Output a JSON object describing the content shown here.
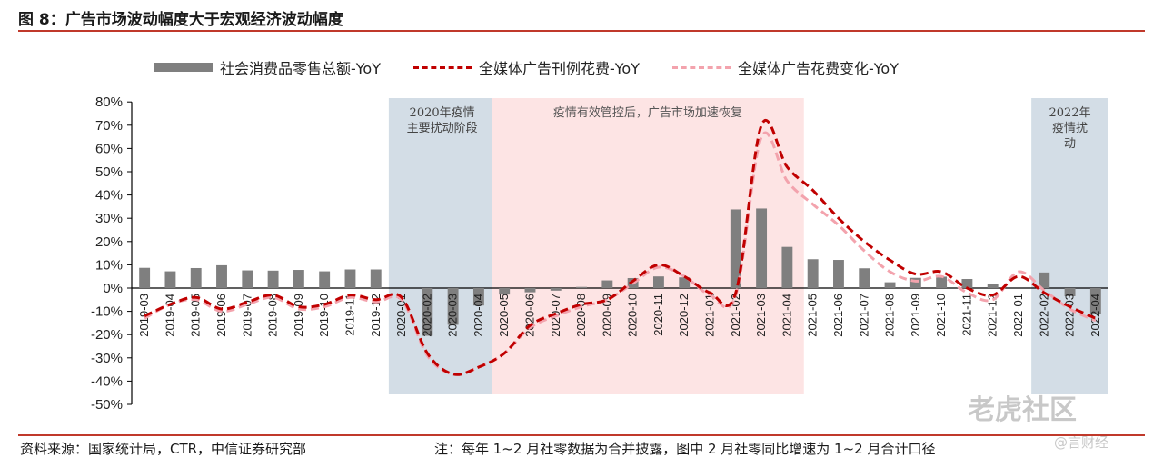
{
  "header": {
    "title": "图 8：广告市场波动幅度大于宏观经济波动幅度"
  },
  "footer": {
    "source": "资料来源：国家统计局，CTR，中信证券研究部",
    "note": "注：每年 1~2 月社零数据为合并披露，图中 2 月社零同比增速为 1~2 月合计口径"
  },
  "watermark": {
    "main": "老虎社区",
    "sub": "@言财经"
  },
  "chart_data": {
    "type": "bar",
    "ylim": [
      -50,
      80
    ],
    "yticks": [
      -50,
      -40,
      -30,
      -20,
      -10,
      0,
      10,
      20,
      30,
      40,
      50,
      60,
      70,
      80
    ],
    "categories": [
      "2019-03",
      "2019-04",
      "2019-05",
      "2019-06",
      "2019-07",
      "2019-08",
      "2019-09",
      "2019-10",
      "2019-11",
      "2019-12",
      "2020-01",
      "2020-02",
      "2020-03",
      "2020-04",
      "2020-05",
      "2020-06",
      "2020-07",
      "2020-08",
      "2020-09",
      "2020-10",
      "2020-11",
      "2020-12",
      "2021-01",
      "2021-02",
      "2021-03",
      "2021-04",
      "2021-05",
      "2021-06",
      "2021-07",
      "2021-08",
      "2021-09",
      "2021-10",
      "2021-11",
      "2021-12",
      "2022-01",
      "2022-02",
      "2022-03",
      "2022-04"
    ],
    "series": [
      {
        "name": "社会消费品零售总额-YoY",
        "kind": "bar",
        "color": "#7f7f7f",
        "values": [
          8.7,
          7.2,
          8.6,
          9.8,
          7.6,
          7.5,
          7.8,
          7.2,
          8.0,
          8.0,
          null,
          -20.5,
          -15.8,
          -7.5,
          -2.8,
          -1.8,
          -1.1,
          0.5,
          3.3,
          4.3,
          5.0,
          4.6,
          null,
          33.8,
          34.2,
          17.7,
          12.4,
          12.1,
          8.5,
          2.5,
          4.4,
          4.9,
          3.9,
          1.7,
          null,
          6.7,
          -3.5,
          -11.1
        ]
      },
      {
        "name": "全媒体广告刊例花费-YoY",
        "kind": "line",
        "color": "#c00000",
        "values": [
          -12,
          -7,
          -4,
          -9,
          -6,
          -3,
          -8,
          -7,
          -3,
          -5,
          -4,
          -28,
          -37,
          -34,
          -28,
          -16,
          -11,
          -7,
          -5,
          3,
          10,
          5,
          -2,
          -2,
          70,
          52,
          42,
          30,
          20,
          12,
          6,
          7,
          0,
          -3,
          5,
          -2,
          -8,
          -13
        ]
      },
      {
        "name": "全媒体广告花费变化-YoY",
        "kind": "line",
        "color": "#f3a3ad",
        "values": [
          -13,
          -7,
          -5,
          -10,
          -7,
          -4,
          -9,
          -8,
          -4,
          -6,
          -5,
          -29,
          -37,
          -34,
          -28,
          -17,
          -12,
          -8,
          -5,
          2,
          9,
          5,
          -3,
          -3,
          65,
          46,
          36,
          27,
          16,
          7,
          3,
          5,
          -2,
          -5,
          7,
          -1,
          -9,
          -14
        ]
      }
    ],
    "shaded_regions": [
      {
        "from": "2020-01",
        "to": "2020-05",
        "label": [
          "2020年疫情",
          "主要扰动阶段"
        ],
        "color": "#d3dde6",
        "label_color": "#444444"
      },
      {
        "from": "2020-05",
        "to": "2021-05",
        "label": [
          "疫情有效管控后，广告市场加速恢复"
        ],
        "color": "#fde4e4",
        "label_color": "#555555"
      },
      {
        "from": "2022-02",
        "to": "2022-05",
        "label": [
          "2022年",
          "疫情扰",
          "动"
        ],
        "color": "#d3dde6",
        "label_color": "#444444"
      }
    ],
    "yaxis_format": "percent"
  }
}
